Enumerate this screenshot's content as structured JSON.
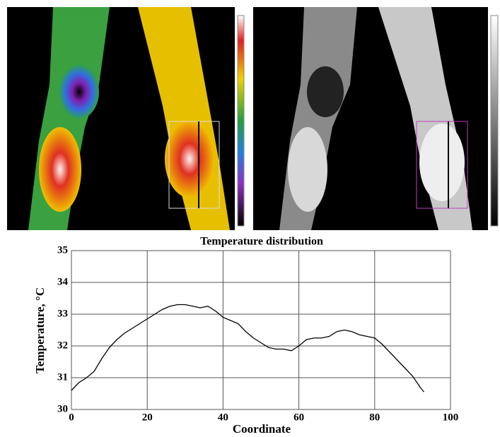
{
  "chart_data": {
    "type": "line",
    "title": "Temperature distribution",
    "x_label": "Coordinate",
    "y_label": "Temperature, °C",
    "x": [
      0,
      2,
      4,
      6,
      8,
      10,
      12,
      14,
      16,
      18,
      20,
      22,
      24,
      26,
      28,
      30,
      32,
      34,
      36,
      38,
      40,
      42,
      44,
      46,
      48,
      50,
      52,
      54,
      56,
      58,
      60,
      62,
      64,
      66,
      68,
      70,
      72,
      74,
      76,
      78,
      80,
      82,
      84,
      86,
      88,
      90,
      92,
      93
    ],
    "values": [
      30.6,
      30.85,
      31.0,
      31.2,
      31.6,
      31.95,
      32.2,
      32.4,
      32.55,
      32.7,
      32.85,
      33.0,
      33.15,
      33.25,
      33.3,
      33.3,
      33.25,
      33.2,
      33.25,
      33.1,
      32.9,
      32.8,
      32.7,
      32.45,
      32.25,
      32.1,
      31.95,
      31.9,
      31.9,
      31.85,
      32.0,
      32.2,
      32.25,
      32.25,
      32.3,
      32.45,
      32.5,
      32.45,
      32.35,
      32.3,
      32.25,
      32.05,
      31.8,
      31.55,
      31.3,
      31.05,
      30.7,
      30.55
    ],
    "color": "#000000",
    "xlim": [
      0,
      100
    ],
    "xticks": [
      0,
      20,
      40,
      60,
      80,
      100
    ],
    "ylim": [
      30,
      35
    ],
    "yticks": [
      30,
      31,
      32,
      33,
      34,
      35
    ],
    "grid": true
  }
}
